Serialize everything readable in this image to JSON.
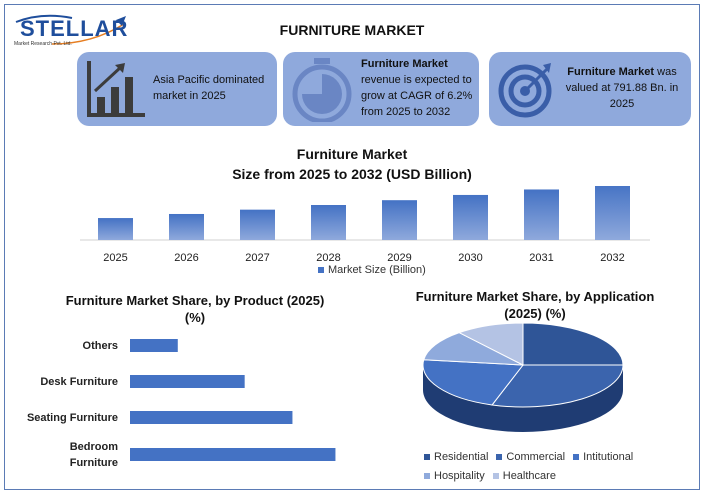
{
  "logo": {
    "name": "STELLAR",
    "tagline": "Market Research Pvt. Ltd."
  },
  "header": {
    "title": "FURNITURE MARKET"
  },
  "cards": [
    {
      "icon": "bar-chart-growth-icon",
      "text": "Asia Pacific dominated market in 2025"
    },
    {
      "icon": "stopwatch-icon",
      "bold": "Furniture Market",
      "text": "revenue is expected to grow at CAGR of 6.2% from 2025 to 2032"
    },
    {
      "icon": "target-icon",
      "bold": "Furniture Market",
      "text": " was valued at 791.88 Bn. in 2025"
    }
  ],
  "colors": {
    "card_bg": "#8fa9dc",
    "bar": "#4472c4",
    "dark": "#2f5597"
  },
  "chart_data": [
    {
      "type": "bar",
      "title": "Furniture Market Size from 2025 to 2032 (USD Billion)",
      "title_line1": "Furniture Market",
      "title_line2": "Size from 2025 to 2032 (USD Billion)",
      "categories": [
        "2025",
        "2026",
        "2027",
        "2028",
        "2029",
        "2030",
        "2031",
        "2032"
      ],
      "series": [
        {
          "name": "Market Size (Billion)",
          "values": [
            791.88,
            841,
            893,
            949,
            1007,
            1070,
            1136,
            1207
          ]
        }
      ],
      "legend": "bottom",
      "grid": false
    },
    {
      "type": "bar",
      "orientation": "horizontal",
      "title_line1": "Furniture Market Share, by Product (2025)",
      "title_line2": "(%)",
      "categories": [
        "Others",
        "Desk Furniture",
        "Seating Furniture",
        "Bedroom Furniture"
      ],
      "values": [
        10,
        24,
        34,
        43
      ],
      "xlim": [
        0,
        45
      ],
      "grid": false
    },
    {
      "type": "pie",
      "style": "3d",
      "title_line1": "Furniture Market Share, by Application",
      "title_line2": "(2025) (%)",
      "categories": [
        "Residential",
        "Commercial",
        "Intitutional",
        "Hospitality",
        "Healthcare"
      ],
      "values": [
        25,
        30,
        22,
        12,
        11
      ],
      "colors": [
        "#2f5597",
        "#3b64ad",
        "#4472c4",
        "#8faadc",
        "#b4c3e4"
      ],
      "legend": "bottom"
    }
  ]
}
